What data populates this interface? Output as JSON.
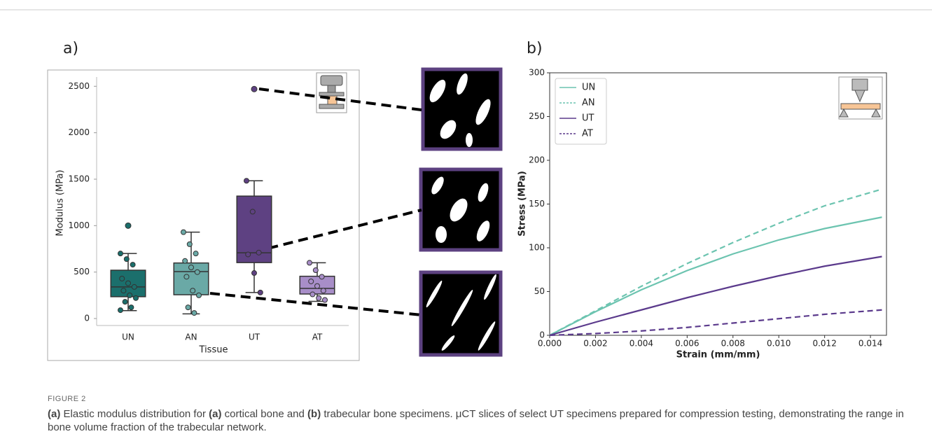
{
  "chart_data": [
    {
      "type": "box",
      "panel": "a)",
      "categories": [
        "UN",
        "AN",
        "UT",
        "AT"
      ],
      "colors": [
        "#1b6f6c",
        "#6aa9a6",
        "#5e4182",
        "#a88ec8"
      ],
      "boxes": [
        {
          "whislo": 85,
          "q1": 235,
          "med": 340,
          "q3": 520,
          "whishi": 700,
          "fliers": [
            1000
          ]
        },
        {
          "whislo": 50,
          "q1": 256,
          "med": 505,
          "q3": 598,
          "whishi": 930,
          "fliers": []
        },
        {
          "whislo": 280,
          "q1": 602,
          "med": 708,
          "q3": 1318,
          "whishi": 1483,
          "fliers": [
            2470
          ]
        },
        {
          "whislo": 185,
          "q1": 264,
          "med": 324,
          "q3": 455,
          "whishi": 600,
          "fliers": []
        }
      ],
      "points": [
        [
          700,
          640,
          580,
          430,
          380,
          340,
          300,
          250,
          220,
          180,
          120,
          90
        ],
        [
          930,
          800,
          700,
          620,
          550,
          500,
          450,
          300,
          250,
          120,
          60
        ],
        [
          1483,
          1150,
          710,
          690,
          490,
          280
        ],
        [
          600,
          520,
          450,
          400,
          350,
          300,
          260,
          220,
          200
        ]
      ],
      "x_label": "Tissue",
      "y_label": "Modulus (MPa)",
      "ylim": [
        -75,
        2600
      ],
      "yticks": [
        0,
        500,
        1000,
        1500,
        2000,
        2500
      ]
    },
    {
      "type": "line",
      "panel": "b)",
      "x": [
        0,
        0.002,
        0.004,
        0.006,
        0.008,
        0.01,
        0.012,
        0.0145
      ],
      "series": [
        {
          "name": "UN",
          "color": "#6cc4b0",
          "linestyle": "solid",
          "values": [
            0,
            27,
            52,
            74,
            93,
            109,
            122,
            135
          ]
        },
        {
          "name": "AN",
          "color": "#6cc4b0",
          "linestyle": "dashed",
          "values": [
            0,
            28,
            56,
            82,
            106,
            128,
            148,
            167
          ]
        },
        {
          "name": "UT",
          "color": "#5b3a8c",
          "linestyle": "solid",
          "values": [
            0,
            15,
            29,
            43,
            56,
            68,
            79,
            90
          ]
        },
        {
          "name": "AT",
          "color": "#5b3a8c",
          "linestyle": "dashed",
          "values": [
            0,
            2,
            5,
            9,
            14,
            19,
            24,
            29
          ]
        }
      ],
      "x_label": "Strain (mm/mm)",
      "y_label": "Stress (MPa)",
      "xlim": [
        0,
        0.0147
      ],
      "ylim": [
        0,
        300
      ],
      "xticks": [
        {
          "value": 0,
          "label": "0.000"
        },
        {
          "value": 0.002,
          "label": "0.002"
        },
        {
          "value": 0.004,
          "label": "0.004"
        },
        {
          "value": 0.006,
          "label": "0.006"
        },
        {
          "value": 0.008,
          "label": "0.008"
        },
        {
          "value": 0.01,
          "label": "0.010"
        },
        {
          "value": 0.012,
          "label": "0.012"
        },
        {
          "value": 0.014,
          "label": "0.014"
        }
      ],
      "yticks": [
        0,
        50,
        100,
        150,
        200,
        250,
        300
      ],
      "legend": "upper left"
    }
  ],
  "caption": {
    "label": "FIGURE 2",
    "parts": [
      "(a)",
      " Elastic modulus distribution for ",
      "(a)",
      " cortical bone and ",
      "(b)",
      " trabecular bone specimens. μCT slices of select UT specimens prepared for compression testing, demonstrating the range in bone volume fraction of the trabecular network."
    ]
  }
}
